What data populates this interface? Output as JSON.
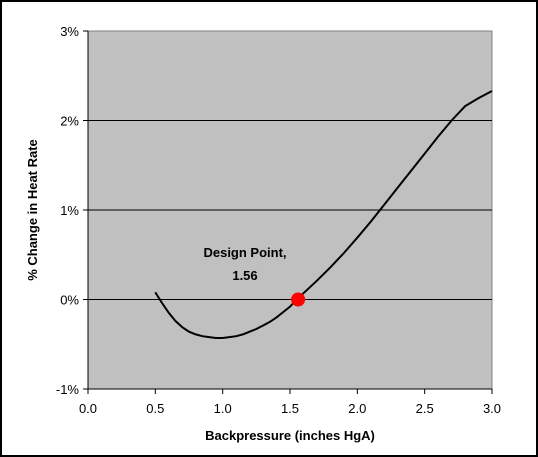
{
  "chart_data": {
    "type": "line",
    "title": "",
    "xlabel": "Backpressure (inches HgA)",
    "ylabel": "% Change in Heat Rate",
    "xlim": [
      0.0,
      3.0
    ],
    "ylim": [
      -1,
      3
    ],
    "x_ticks": [
      "0.0",
      "0.5",
      "1.0",
      "1.5",
      "2.0",
      "2.5",
      "3.0"
    ],
    "y_ticks": [
      "-1%",
      "0%",
      "1%",
      "2%",
      "3%"
    ],
    "grid": "horizontal",
    "plot_background": "#c0c0c0",
    "line_color": "#000000",
    "series": [
      {
        "x": [
          0.5,
          0.55,
          0.6,
          0.65,
          0.7,
          0.75,
          0.8,
          0.85,
          0.9,
          0.95,
          1.0,
          1.05,
          1.1,
          1.15,
          1.2,
          1.25,
          1.3,
          1.35,
          1.4,
          1.45,
          1.5,
          1.55,
          1.6,
          1.7,
          1.8,
          1.9,
          2.0,
          2.1,
          2.2,
          2.3,
          2.4,
          2.5,
          2.6,
          2.7,
          2.8,
          2.9,
          3.0
        ],
        "y": [
          0.08,
          -0.04,
          -0.15,
          -0.24,
          -0.31,
          -0.36,
          -0.39,
          -0.41,
          -0.42,
          -0.43,
          -0.43,
          -0.42,
          -0.41,
          -0.39,
          -0.36,
          -0.33,
          -0.29,
          -0.25,
          -0.2,
          -0.14,
          -0.08,
          0.0,
          0.07,
          0.21,
          0.36,
          0.52,
          0.69,
          0.87,
          1.06,
          1.25,
          1.44,
          1.63,
          1.82,
          2.0,
          2.16,
          2.25,
          2.33
        ]
      }
    ],
    "design_point": {
      "x": 1.56,
      "y": 0.0,
      "color": "#ff0000"
    },
    "annotation": {
      "line1": "Design Point,",
      "line2": "1.56"
    }
  }
}
